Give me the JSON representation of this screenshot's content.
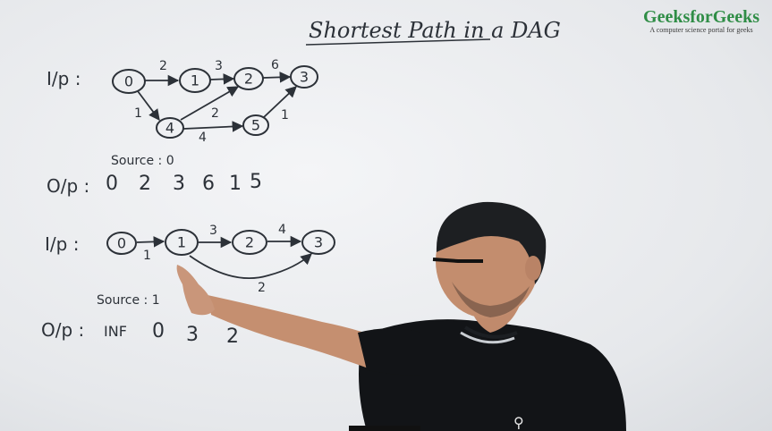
{
  "title": "Shortest Path in a DAG",
  "logo": {
    "brand": "GeeksforGeeks",
    "tagline": "A computer science portal for geeks"
  },
  "example1": {
    "input_label": "I/p :",
    "nodes": [
      "0",
      "1",
      "2",
      "3",
      "4",
      "5"
    ],
    "weights": {
      "e01": "2",
      "e12": "3",
      "e23": "6",
      "e04": "1",
      "e42": "2",
      "e45": "4",
      "e53": "1"
    },
    "source_text": "Source : 0",
    "output_label": "O/p :",
    "output_values": [
      "0",
      "2",
      "3",
      "6",
      "1",
      "5"
    ]
  },
  "example2": {
    "input_label": "I/p :",
    "nodes": [
      "0",
      "1",
      "2",
      "3"
    ],
    "weights": {
      "e01": "1",
      "e12": "3",
      "e23": "4",
      "e13": "2"
    },
    "source_text": "Source : 1",
    "output_label": "O/p :",
    "output_values": [
      "INF",
      "0",
      "3",
      "2"
    ]
  },
  "colors": {
    "ink": "#2c3138",
    "brand_green": "#2f8d46",
    "shirt": "#111316"
  }
}
